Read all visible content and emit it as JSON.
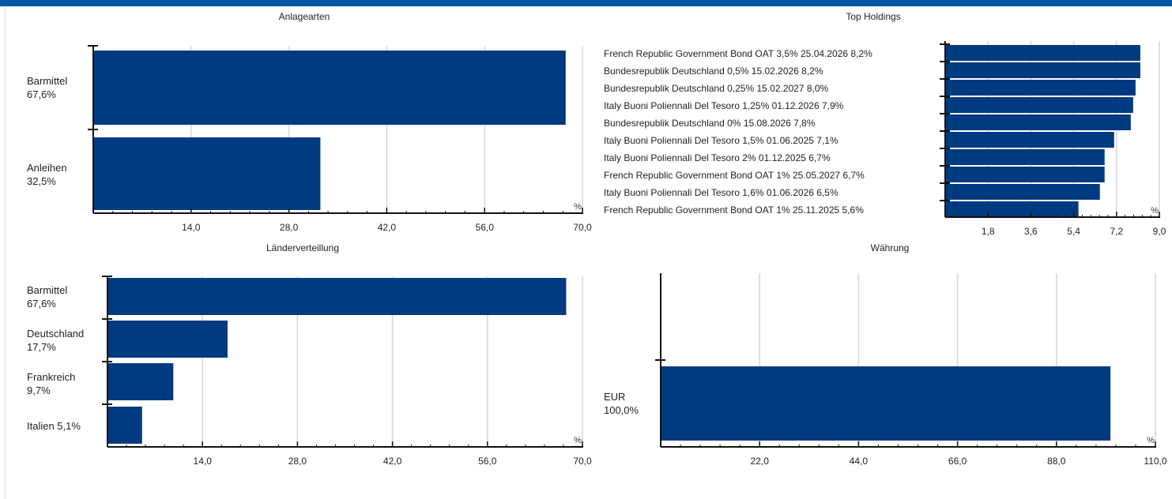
{
  "colors": {
    "bar": "#003a80",
    "grid": "#d5d5e0",
    "axis": "#111111",
    "header": "#0a56a6"
  },
  "charts": {
    "anlagearten": {
      "title": "Anlagearten",
      "chart_data": {
        "type": "bar",
        "orientation": "horizontal",
        "title": "Anlagearten",
        "unit": "%",
        "categories": [
          "Barmittel",
          "Anleihen"
        ],
        "values": [
          67.6,
          32.5
        ],
        "value_labels": [
          "67,6%",
          "32,5%"
        ],
        "xlim": [
          0,
          70
        ],
        "xticks": [
          "14,0",
          "28,0",
          "42,0",
          "56,0",
          "70,0"
        ],
        "grid": true
      }
    },
    "top_holdings": {
      "title": "Top Holdings",
      "chart_data": {
        "type": "bar",
        "orientation": "horizontal",
        "title": "Top Holdings",
        "unit": "%",
        "categories": [
          "French Republic Government Bond OAT 3,5% 25.04.2026",
          "Bundesrepublik Deutschland 0,5% 15.02.2026",
          "Bundesrepublik Deutschland 0,25% 15.02.2027",
          "Italy Buoni Poliennali Del Tesoro 1,25% 01.12.2026",
          "Bundesrepublik Deutschland 0% 15.08.2026",
          "Italy Buoni Poliennali Del Tesoro 1,5% 01.06.2025",
          "Italy Buoni Poliennali Del Tesoro 2% 01.12.2025",
          "French Republic Government Bond OAT 1% 25.05.2027",
          "Italy Buoni Poliennali Del Tesoro 1,6% 01.06.2026",
          "French Republic Government Bond OAT 1% 25.11.2025"
        ],
        "values": [
          8.2,
          8.2,
          8.0,
          7.9,
          7.8,
          7.1,
          6.7,
          6.7,
          6.5,
          5.6
        ],
        "value_labels": [
          "8,2%",
          "8,2%",
          "8,0%",
          "7,9%",
          "7,8%",
          "7,1%",
          "6,7%",
          "6,7%",
          "6,5%",
          "5,6%"
        ],
        "xlim": [
          0,
          9
        ],
        "xticks": [
          "1,8",
          "3,6",
          "5,4",
          "7,2",
          "9,0"
        ],
        "grid": true
      }
    },
    "laender": {
      "title": "Länderverteillung",
      "chart_data": {
        "type": "bar",
        "orientation": "horizontal",
        "title": "Länderverteillung",
        "unit": "%",
        "categories": [
          "Barmittel",
          "Deutschland",
          "Frankreich",
          "Italien"
        ],
        "values": [
          67.6,
          17.7,
          9.7,
          5.1
        ],
        "value_labels": [
          "67,6%",
          "17,7%",
          "9,7%",
          "5,1%"
        ],
        "xlim": [
          0,
          70
        ],
        "xticks": [
          "14,0",
          "28,0",
          "42,0",
          "56,0",
          "70,0"
        ],
        "grid": true
      }
    },
    "waehrung": {
      "title": "Währung",
      "chart_data": {
        "type": "bar",
        "orientation": "horizontal",
        "title": "Währung",
        "unit": "%",
        "categories": [
          "EUR"
        ],
        "values": [
          100.0
        ],
        "value_labels": [
          "100,0%"
        ],
        "xlim": [
          0,
          110
        ],
        "xticks": [
          "22,0",
          "44,0",
          "66,0",
          "88,0",
          "110,0"
        ],
        "grid": true
      }
    }
  }
}
